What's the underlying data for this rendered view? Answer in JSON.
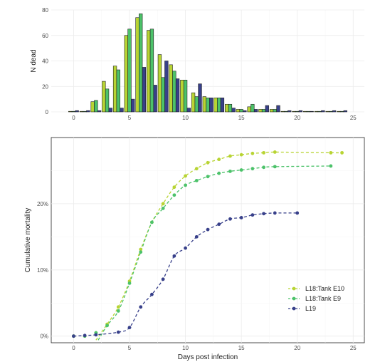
{
  "chart_data": [
    {
      "type": "bar",
      "xlabel": "",
      "ylabel": "N dead",
      "xlim": [
        -2,
        26
      ],
      "ylim": [
        0,
        80
      ],
      "x_ticks": [
        "0",
        "5",
        "10",
        "15",
        "20",
        "25"
      ],
      "y_ticks": [
        "0",
        "20",
        "40",
        "60",
        "80"
      ],
      "grid": true,
      "colors": [
        "#b8d433",
        "#4cc26a",
        "#38408a"
      ],
      "x": [
        0,
        1,
        2,
        3,
        4,
        5,
        6,
        7,
        8,
        9,
        10,
        11,
        12,
        13,
        14,
        15,
        16,
        17,
        18,
        19,
        20,
        21,
        22,
        23,
        24
      ],
      "series": [
        {
          "values": [
            0,
            0,
            8,
            24,
            36,
            60,
            74,
            64,
            45,
            37,
            25,
            15,
            12,
            11,
            6,
            2,
            4,
            2,
            2,
            0,
            0,
            0,
            0,
            0,
            0
          ]
        },
        {
          "values": [
            0,
            0,
            9,
            18,
            33,
            65,
            77,
            65,
            27,
            32,
            25,
            12,
            11,
            11,
            6,
            2,
            6,
            2,
            2,
            0,
            0,
            0,
            0,
            0,
            0
          ]
        },
        {
          "values": [
            1,
            1,
            1,
            3,
            3,
            10,
            35,
            21,
            40,
            26,
            3,
            22,
            11,
            11,
            3,
            1,
            2,
            5,
            5,
            1,
            1,
            0,
            1,
            1,
            1
          ]
        }
      ]
    },
    {
      "type": "scatter",
      "xlabel": "Days post infection",
      "ylabel": "Cumulative mortality",
      "xlim": [
        -2,
        26
      ],
      "ylim": [
        -0.01,
        0.3
      ],
      "x_ticks": [
        "0",
        "5",
        "10",
        "15",
        "20",
        "25"
      ],
      "y_ticks": [
        "0%",
        "10%",
        "20%"
      ],
      "grid": true,
      "legend": "bottom-right",
      "series": [
        {
          "name": "L18:Tank E10",
          "color": "#b8d433",
          "x": [
            0,
            1,
            2,
            3,
            4,
            5,
            6,
            7,
            8,
            9,
            10,
            11,
            12,
            13,
            14,
            15,
            16,
            17,
            18,
            23,
            24
          ],
          "y": [
            0,
            0,
            0.005,
            0.018,
            0.044,
            0.083,
            0.131,
            0.172,
            0.2,
            0.225,
            0.242,
            0.253,
            0.262,
            0.267,
            0.272,
            0.274,
            0.276,
            0.277,
            0.278,
            0.277,
            0.277
          ]
        },
        {
          "name": "L18:Tank E9",
          "color": "#4cc26a",
          "x": [
            0,
            1,
            2,
            3,
            4,
            5,
            6,
            7,
            8,
            9,
            10,
            11,
            12,
            13,
            14,
            15,
            16,
            17,
            18,
            23
          ],
          "y": [
            0,
            0,
            0.005,
            0.016,
            0.038,
            0.08,
            0.127,
            0.172,
            0.193,
            0.213,
            0.228,
            0.235,
            0.241,
            0.246,
            0.249,
            0.251,
            0.253,
            0.255,
            0.256,
            0.257
          ]
        },
        {
          "name": "L19",
          "color": "#38408a",
          "x": [
            0,
            1,
            2,
            4,
            5,
            6,
            7,
            8,
            9,
            10,
            11,
            12,
            13,
            14,
            15,
            16,
            17,
            18,
            20
          ],
          "y": [
            0,
            0.001,
            0.002,
            0.006,
            0.013,
            0.044,
            0.063,
            0.086,
            0.121,
            0.133,
            0.15,
            0.161,
            0.169,
            0.177,
            0.179,
            0.183,
            0.185,
            0.186,
            0.186
          ]
        }
      ]
    }
  ]
}
